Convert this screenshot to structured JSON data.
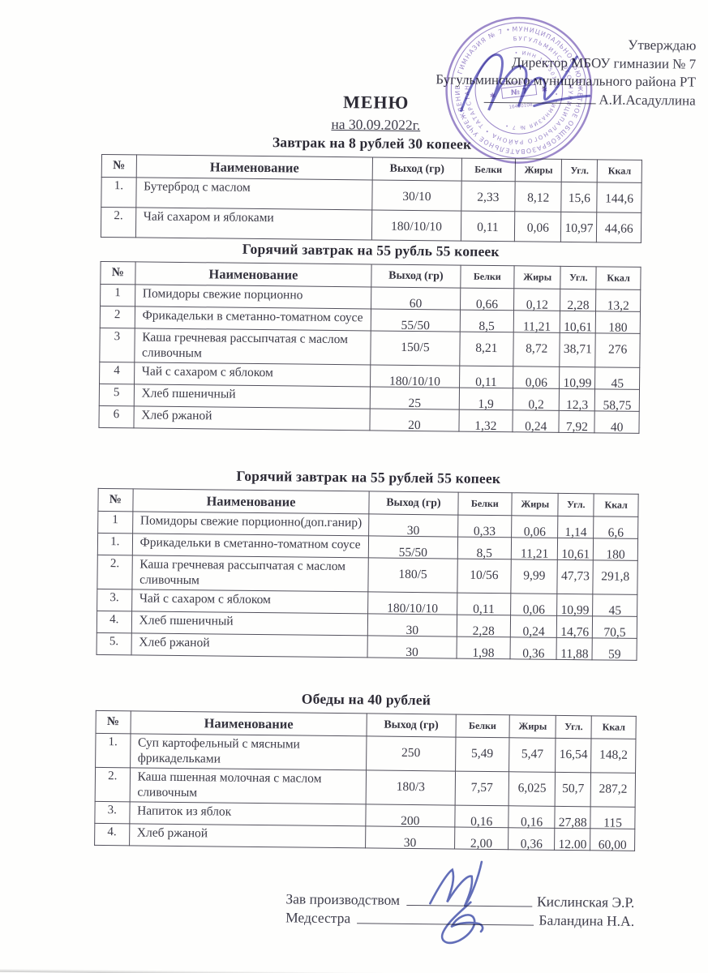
{
  "approval": {
    "line1": "Утверждаю",
    "line2": "Директор МБОУ гимназии № 7",
    "line3": "Бугульминского муниципального района РТ",
    "signature_name": "А.И.Асадуллина"
  },
  "title": "МЕНЮ",
  "date_line": "на 30.09.2022г.",
  "columns": [
    "№",
    "Наименование",
    "Выход (гр)",
    "Белки",
    "Жиры",
    "Угл.",
    "Ккал"
  ],
  "sections": [
    {
      "title": "Завтрак на 8 рублей 30 копеек",
      "rows": [
        {
          "num": "1.",
          "name": "Бутерброд с маслом",
          "out": "30/10",
          "protein": "2,33",
          "fat": "8,12",
          "carb": "15,6",
          "kcal": "144,6"
        },
        {
          "num": "2.",
          "name": "Чай сахаром и яблоками",
          "out": "180/10/10",
          "protein": "0,11",
          "fat": "0,06",
          "carb": "10,97",
          "kcal": "44,66"
        }
      ]
    },
    {
      "title": "Горячий завтрак на 55 рубль 55 копеек",
      "rows": [
        {
          "num": "1",
          "name": "Помидоры свежие порционно",
          "out": "60",
          "protein": "0,66",
          "fat": "0,12",
          "carb": "2,28",
          "kcal": "13,2"
        },
        {
          "num": "2",
          "name": "Фрикадельки в сметанно-томатном соусе",
          "out": "55/50",
          "protein": "8,5",
          "fat": "11,21",
          "carb": "10,61",
          "kcal": "180"
        },
        {
          "num": "3",
          "name": "Каша гречневая рассыпчатая с маслом сливочным",
          "out": "150/5",
          "protein": "8,21",
          "fat": "8,72",
          "carb": "38,71",
          "kcal": "276"
        },
        {
          "num": "4",
          "name": "Чай с сахаром с яблоком",
          "out": "180/10/10",
          "protein": "0,11",
          "fat": "0,06",
          "carb": "10,99",
          "kcal": "45"
        },
        {
          "num": "5",
          "name": "Хлеб пшеничный",
          "out": "25",
          "protein": "1,9",
          "fat": "0,2",
          "carb": "12,3",
          "kcal": "58,75"
        },
        {
          "num": "6",
          "name": "Хлеб ржаной",
          "out": "20",
          "protein": "1,32",
          "fat": "0,24",
          "carb": "7,92",
          "kcal": "40"
        }
      ]
    },
    {
      "title": "Горячий завтрак на 55 рублей 55 копеек",
      "rows": [
        {
          "num": "1",
          "name": "Помидоры свежие порционно(доп.ганир)",
          "out": "30",
          "protein": "0,33",
          "fat": "0,06",
          "carb": "1,14",
          "kcal": "6,6"
        },
        {
          "num": "1.",
          "name": "Фрикадельки в сметанно-томатном соусе",
          "out": "55/50",
          "protein": "8,5",
          "fat": "11,21",
          "carb": "10,61",
          "kcal": "180"
        },
        {
          "num": "2.",
          "name": "Каша гречневая рассыпчатая с маслом сливочным",
          "out": "180/5",
          "protein": "10/56",
          "fat": "9,99",
          "carb": "47,73",
          "kcal": "291,8"
        },
        {
          "num": "3.",
          "name": "Чай с сахаром с яблоком",
          "out": "180/10/10",
          "protein": "0,11",
          "fat": "0,06",
          "carb": "10,99",
          "kcal": "45"
        },
        {
          "num": "4.",
          "name": "Хлеб пшеничный",
          "out": "30",
          "protein": "2,28",
          "fat": "0,24",
          "carb": "14,76",
          "kcal": "70,5"
        },
        {
          "num": "5.",
          "name": "Хлеб ржаной",
          "out": "30",
          "protein": "1,98",
          "fat": "0,36",
          "carb": "11,88",
          "kcal": "59"
        }
      ]
    },
    {
      "title": "Обеды на 40 рублей",
      "rows": [
        {
          "num": "1.",
          "name": "Суп картофельный с мясными фрикадельками",
          "out": "250",
          "protein": "5,49",
          "fat": "5,47",
          "carb": "16,54",
          "kcal": "148,2"
        },
        {
          "num": "2.",
          "name": "Каша пшенная молочная с маслом сливочным",
          "out": "180/3",
          "protein": "7,57",
          "fat": "6,025",
          "carb": "50,7",
          "kcal": "287,2"
        },
        {
          "num": "3.",
          "name": "Напиток из яблок",
          "out": "200",
          "protein": "0,16",
          "fat": "0,16",
          "carb": "27,88",
          "kcal": "115"
        },
        {
          "num": "4.",
          "name": "Хлеб ржаной",
          "out": "30",
          "protein": "2,00",
          "fat": "0,36",
          "carb": "12.00",
          "kcal": "60,00"
        }
      ]
    }
  ],
  "footer": {
    "role1": "Зав производством",
    "name1": "Кислинская Э.Р.",
    "role2": "Медсестра",
    "name2": "Баландина Н.А."
  },
  "stamp": {
    "ring_outer": "МУНИЦИПАЛЬНОЕ БЮДЖЕТНОЕ ОБЩЕОБРАЗОВАТЕЛЬНОЕ УЧРЕЖДЕНИЕ • ГИМНАЗИЯ № 7 •",
    "ring_middle": "БУГУЛЬМИНСКОГО МУНИЦИПАЛЬНОГО РАЙОНА • ТАТАРСТАН •",
    "ring_inner": "• ИНН 16450108 • ГИМНАЗИЯ № 7 •",
    "center_top": "Гимназия",
    "center": "№ 7"
  },
  "ink_colors": {
    "stamp_purple": "#8b74c1",
    "signature_blue": "#5562b2"
  }
}
